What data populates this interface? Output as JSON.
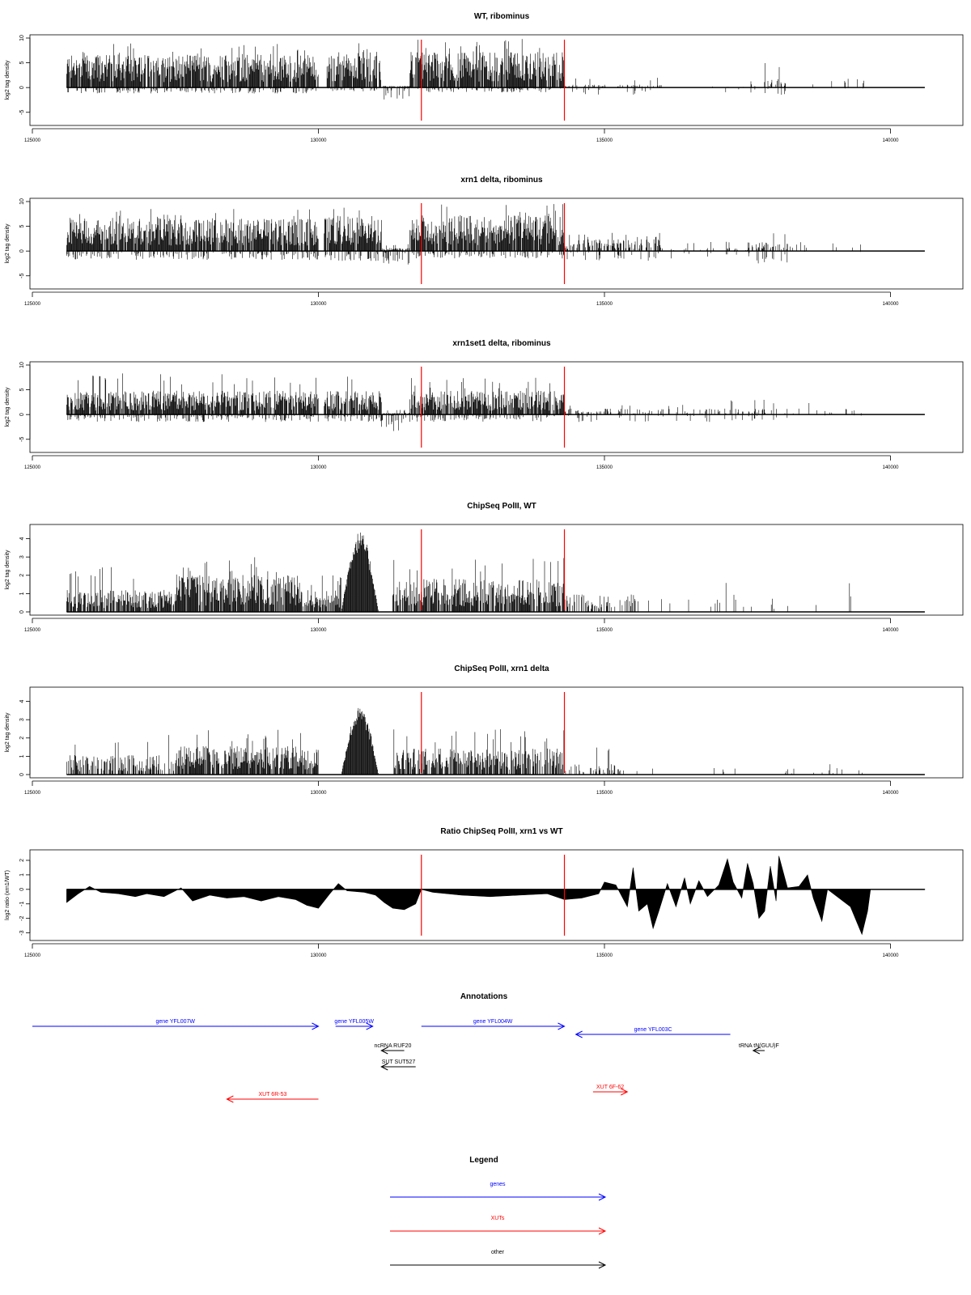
{
  "colors": {
    "black": "#000000",
    "red": "#ff0000",
    "blue": "#0000ff"
  },
  "vlines_x": [
    131800,
    134300
  ],
  "xaxis": {
    "ticks": [
      125000,
      130000,
      135000,
      140000
    ],
    "tick_labels": [
      "125000",
      "130000",
      "135000",
      "140000"
    ],
    "xlim": [
      125000,
      140700
    ]
  },
  "chart_data": [
    {
      "type": "bar",
      "title": "WT, ribominus",
      "ylabel": "log2 tag density",
      "ylim": [
        -7,
        10
      ],
      "yticks": [
        -5,
        0,
        5,
        10
      ],
      "yticklabels": [
        "-5",
        "0",
        "5",
        "10"
      ],
      "segments": [
        {
          "x": [
            125600,
            130000
          ],
          "up": 5.5,
          "upmax": 9,
          "down": 1.2,
          "dens": 0.9
        },
        {
          "x": [
            130150,
            131100
          ],
          "up": 6.0,
          "upmax": 9,
          "down": 0.8,
          "dens": 0.9
        },
        {
          "x": [
            131100,
            131600
          ],
          "up": 0.3,
          "upmax": 1,
          "down": 2.5,
          "dens": 0.8
        },
        {
          "x": [
            131600,
            134300
          ],
          "up": 6.0,
          "upmax": 10,
          "down": 1.0,
          "dens": 0.9
        },
        {
          "x": [
            134300,
            136000
          ],
          "up": 0.5,
          "upmax": 2,
          "down": 1.5,
          "dens": 0.25
        },
        {
          "x": [
            136000,
            137500
          ],
          "up": 0.2,
          "upmax": 1,
          "down": 1.0,
          "dens": 0.05
        },
        {
          "x": [
            137500,
            138200
          ],
          "up": 1.5,
          "upmax": 5.5,
          "down": 1.5,
          "dens": 0.3
        },
        {
          "x": [
            138200,
            139600
          ],
          "up": 1.5,
          "upmax": 3.5,
          "down": 0.2,
          "dens": 0.05
        }
      ]
    },
    {
      "type": "bar",
      "title": "xrn1 delta, ribominus",
      "ylabel": "log2 tag density",
      "ylim": [
        -7,
        10
      ],
      "yticks": [
        -5,
        0,
        5,
        10
      ],
      "yticklabels": [
        "-5",
        "0",
        "5",
        "10"
      ],
      "segments": [
        {
          "x": [
            125600,
            130000
          ],
          "up": 5.5,
          "upmax": 8.5,
          "down": 1.8,
          "dens": 0.9
        },
        {
          "x": [
            130100,
            131100
          ],
          "up": 6.0,
          "upmax": 9,
          "down": 2.0,
          "dens": 0.9
        },
        {
          "x": [
            131100,
            131600
          ],
          "up": 0.5,
          "upmax": 1.5,
          "down": 4.0,
          "dens": 0.9
        },
        {
          "x": [
            131600,
            134300
          ],
          "up": 6.0,
          "upmax": 9.5,
          "down": 1.5,
          "dens": 0.9
        },
        {
          "x": [
            134300,
            136000
          ],
          "up": 2.0,
          "upmax": 4,
          "down": 2.0,
          "dens": 0.5
        },
        {
          "x": [
            136000,
            137500
          ],
          "up": 0.5,
          "upmax": 2,
          "down": 1.5,
          "dens": 0.15
        },
        {
          "x": [
            137500,
            138200
          ],
          "up": 1.5,
          "upmax": 4,
          "down": 3.5,
          "dens": 0.45
        },
        {
          "x": [
            138200,
            139600
          ],
          "up": 1.5,
          "upmax": 2.5,
          "down": 0.2,
          "dens": 0.05
        }
      ]
    },
    {
      "type": "bar",
      "title": "xrn1set1 delta, ribominus",
      "ylabel": "log2 tag density",
      "ylim": [
        -7,
        10
      ],
      "yticks": [
        -5,
        0,
        5,
        10
      ],
      "yticklabels": [
        "-5",
        "0",
        "5",
        "10"
      ],
      "segments": [
        {
          "x": [
            125600,
            130000
          ],
          "up": 4.0,
          "upmax": 8.5,
          "down": 1.5,
          "dens": 0.85
        },
        {
          "x": [
            130100,
            131100
          ],
          "up": 4.0,
          "upmax": 8,
          "down": 1.5,
          "dens": 0.85
        },
        {
          "x": [
            131100,
            131600
          ],
          "up": 0.3,
          "upmax": 1,
          "down": 3.5,
          "dens": 0.8
        },
        {
          "x": [
            131600,
            134300
          ],
          "up": 4.0,
          "upmax": 7.5,
          "down": 1.5,
          "dens": 0.85
        },
        {
          "x": [
            134300,
            136500
          ],
          "up": 1.0,
          "upmax": 2,
          "down": 1.5,
          "dens": 0.3
        },
        {
          "x": [
            136500,
            138200
          ],
          "up": 1.0,
          "upmax": 3,
          "down": 1.5,
          "dens": 0.25
        },
        {
          "x": [
            138200,
            139600
          ],
          "up": 1.0,
          "upmax": 2.5,
          "down": 0.2,
          "dens": 0.05
        }
      ]
    },
    {
      "type": "bar",
      "title": "ChipSeq PolII, WT",
      "ylabel": "log2 tag density",
      "ylim": [
        0,
        4.6
      ],
      "yticks": [
        0,
        1,
        2,
        3,
        4
      ],
      "yticklabels": [
        "0",
        "1",
        "2",
        "3",
        "4"
      ],
      "segments": [
        {
          "x": [
            125600,
            127500
          ],
          "up": 1.0,
          "upmax": 2.5,
          "down": 0,
          "dens": 0.8
        },
        {
          "x": [
            127500,
            129700
          ],
          "up": 1.7,
          "upmax": 3,
          "down": 0,
          "dens": 0.9
        },
        {
          "x": [
            129700,
            130400
          ],
          "up": 1.0,
          "upmax": 2,
          "down": 0,
          "dens": 0.8
        },
        {
          "x": [
            130400,
            131050
          ],
          "dome": 4.4,
          "up": 1.0,
          "upmax": 1,
          "down": 0,
          "dens": 1
        },
        {
          "x": [
            131300,
            134300
          ],
          "up": 1.5,
          "upmax": 3,
          "down": 0,
          "dens": 0.8
        },
        {
          "x": [
            134300,
            135600
          ],
          "up": 0.8,
          "upmax": 1,
          "down": 0,
          "dens": 0.35
        },
        {
          "x": [
            135600,
            139600
          ],
          "up": 0.8,
          "upmax": 2,
          "down": 0,
          "dens": 0.05
        }
      ]
    },
    {
      "type": "bar",
      "title": "ChipSeq PolII, xrn1 delta",
      "ylabel": "log2 tag density",
      "ylim": [
        0,
        4.6
      ],
      "yticks": [
        0,
        1,
        2,
        3,
        4
      ],
      "yticklabels": [
        "0",
        "1",
        "2",
        "3",
        "4"
      ],
      "segments": [
        {
          "x": [
            125600,
            127500
          ],
          "up": 0.9,
          "upmax": 2.3,
          "down": 0,
          "dens": 0.6
        },
        {
          "x": [
            127500,
            130000
          ],
          "up": 1.3,
          "upmax": 2.5,
          "down": 0,
          "dens": 0.85
        },
        {
          "x": [
            130400,
            131050
          ],
          "dome": 3.7,
          "up": 1.0,
          "upmax": 1,
          "down": 0,
          "dens": 1
        },
        {
          "x": [
            131300,
            134300
          ],
          "up": 1.2,
          "upmax": 2.5,
          "down": 0,
          "dens": 0.75
        },
        {
          "x": [
            134300,
            135300
          ],
          "up": 0.5,
          "upmax": 1.5,
          "down": 0,
          "dens": 0.3
        },
        {
          "x": [
            135300,
            139600
          ],
          "up": 0.3,
          "upmax": 0.8,
          "down": 0,
          "dens": 0.04
        }
      ]
    },
    {
      "type": "area",
      "title": "Ratio ChipSeq PolII, xrn1 vs WT",
      "ylabel": "log2 ratio (xrn1/WT)",
      "ylim": [
        -3.3,
        2.5
      ],
      "yticks": [
        -3,
        -2,
        -1,
        0,
        1,
        2
      ],
      "yticklabels": [
        "-3",
        "-2",
        "-1",
        "0",
        "1",
        "2"
      ],
      "points": [
        [
          125600,
          -0.9
        ],
        [
          125800,
          -0.3
        ],
        [
          126000,
          0.2
        ],
        [
          126200,
          -0.2
        ],
        [
          126500,
          -0.3
        ],
        [
          126800,
          -0.5
        ],
        [
          127000,
          -0.3
        ],
        [
          127300,
          -0.5
        ],
        [
          127600,
          0.1
        ],
        [
          127800,
          -0.8
        ],
        [
          128100,
          -0.4
        ],
        [
          128400,
          -0.6
        ],
        [
          128700,
          -0.5
        ],
        [
          129000,
          -0.8
        ],
        [
          129300,
          -0.5
        ],
        [
          129600,
          -0.7
        ],
        [
          129800,
          -1.1
        ],
        [
          130000,
          -1.3
        ],
        [
          130200,
          -0.3
        ],
        [
          130350,
          0.4
        ],
        [
          130500,
          -0.1
        ],
        [
          130800,
          -0.2
        ],
        [
          131000,
          -0.4
        ],
        [
          131150,
          -0.9
        ],
        [
          131300,
          -1.3
        ],
        [
          131500,
          -1.4
        ],
        [
          131700,
          -1.0
        ],
        [
          131800,
          0.0
        ],
        [
          132000,
          -0.2
        ],
        [
          132500,
          -0.4
        ],
        [
          133000,
          -0.5
        ],
        [
          133500,
          -0.4
        ],
        [
          134000,
          -0.3
        ],
        [
          134300,
          -0.7
        ],
        [
          134600,
          -0.6
        ],
        [
          134900,
          -0.3
        ],
        [
          135000,
          0.5
        ],
        [
          135200,
          0.3
        ],
        [
          135400,
          -1.2
        ],
        [
          135500,
          1.5
        ],
        [
          135600,
          -1.5
        ],
        [
          135750,
          -1.0
        ],
        [
          135850,
          -2.7
        ],
        [
          135950,
          -1.5
        ],
        [
          136100,
          0.4
        ],
        [
          136250,
          -1.2
        ],
        [
          136400,
          0.8
        ],
        [
          136500,
          -1.0
        ],
        [
          136650,
          0.6
        ],
        [
          136800,
          -0.5
        ],
        [
          137000,
          0.3
        ],
        [
          137150,
          2.1
        ],
        [
          137250,
          0.5
        ],
        [
          137400,
          -0.6
        ],
        [
          137500,
          1.8
        ],
        [
          137600,
          0.4
        ],
        [
          137700,
          -2.0
        ],
        [
          137800,
          -1.5
        ],
        [
          137900,
          1.6
        ],
        [
          138000,
          -0.8
        ],
        [
          138050,
          2.3
        ],
        [
          138200,
          0.1
        ],
        [
          138400,
          0.2
        ],
        [
          138550,
          1.0
        ],
        [
          138650,
          -0.6
        ],
        [
          138800,
          -2.2
        ],
        [
          138900,
          0.0
        ],
        [
          139300,
          -1.2
        ],
        [
          139500,
          -3.1
        ],
        [
          139600,
          -1.5
        ],
        [
          139650,
          0.0
        ],
        [
          140600,
          0.0
        ]
      ]
    }
  ],
  "annotations": {
    "title": "Annotations",
    "features": [
      {
        "label": "gene YFL007W",
        "x1": 125000,
        "x2": 130000,
        "dir": "right",
        "color": "blue",
        "row": 0
      },
      {
        "label": "gene YFL005W",
        "x1": 130300,
        "x2": 130950,
        "dir": "right",
        "color": "blue",
        "row": 0
      },
      {
        "label": "gene YFL004W",
        "x1": 131800,
        "x2": 134300,
        "dir": "right",
        "color": "blue",
        "row": 0
      },
      {
        "label": "gene YFL003C",
        "x1": 134500,
        "x2": 137200,
        "dir": "left",
        "color": "blue",
        "row": 1
      },
      {
        "label": "ncRNA RUF20",
        "x1": 131100,
        "x2": 131500,
        "dir": "left",
        "color": "black",
        "row": 2
      },
      {
        "label": "tRNA tN(GUU)F",
        "x1": 137600,
        "x2": 137800,
        "dir": "left",
        "color": "black",
        "row": 2
      },
      {
        "label": "SUT SUT527",
        "x1": 131100,
        "x2": 131700,
        "dir": "left",
        "color": "black",
        "row": 3
      },
      {
        "label": "XUT 6F-62",
        "x1": 134800,
        "x2": 135400,
        "dir": "right",
        "color": "red",
        "row": 4
      },
      {
        "label": "XUT 6R-53",
        "x1": 128400,
        "x2": 130000,
        "dir": "left",
        "color": "red",
        "row": 5
      }
    ]
  },
  "legend": {
    "title": "Legend",
    "items": [
      {
        "label": "genes",
        "color": "blue"
      },
      {
        "label": "XUTs",
        "color": "red"
      },
      {
        "label": "other",
        "color": "black"
      }
    ]
  }
}
